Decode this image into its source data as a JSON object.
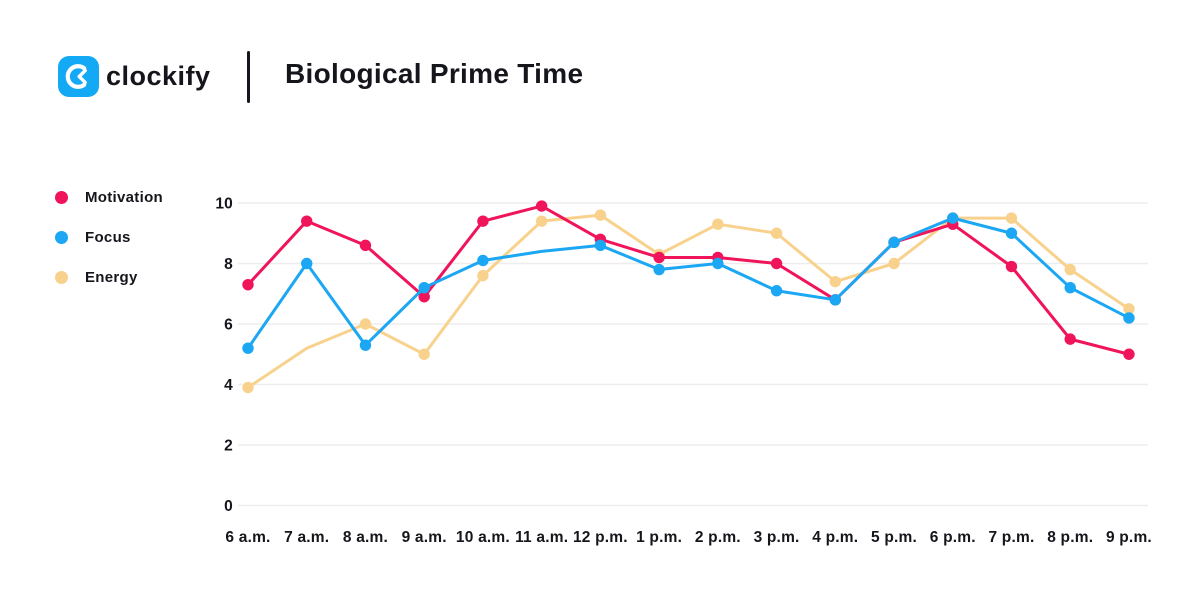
{
  "header": {
    "brand": "clockify",
    "title": "Biological Prime Time"
  },
  "logo": {
    "icon": "clockify-clock-c-mark",
    "background_color": "#14A9F4",
    "glyph_color": "#ffffff"
  },
  "colors": {
    "text": "#15151c",
    "grid": "#ededed",
    "background": "#ffffff"
  },
  "chart_data": {
    "type": "line",
    "title": "Biological Prime Time",
    "xlabel": "",
    "ylabel": "",
    "ylim": [
      0,
      10
    ],
    "yticks": [
      0,
      2,
      4,
      6,
      8,
      10
    ],
    "grid": true,
    "grid_color": "#ededed",
    "legend_position": "left",
    "categories": [
      "6 a.m.",
      "7 a.m.",
      "8 a.m.",
      "9 a.m.",
      "10 a.m.",
      "11 a.m.",
      "12 p.m.",
      "1 p.m.",
      "2 p.m.",
      "3 p.m.",
      "4 p.m.",
      "5 p.m.",
      "6 p.m.",
      "7 p.m.",
      "8 p.m.",
      "9 p.m."
    ],
    "series": [
      {
        "name": "Energy",
        "color": "#F8D28C",
        "values": [
          3.9,
          5.2,
          6.0,
          5.0,
          7.6,
          9.4,
          9.6,
          8.3,
          9.3,
          9.0,
          7.4,
          8.0,
          9.5,
          9.5,
          7.8,
          6.5
        ],
        "no_marker_indices": [
          1
        ]
      },
      {
        "name": "Motivation",
        "color": "#F0145A",
        "values": [
          7.3,
          9.4,
          8.6,
          6.9,
          9.4,
          9.9,
          8.8,
          8.2,
          8.2,
          8.0,
          6.8,
          8.7,
          9.3,
          7.9,
          5.5,
          5.0
        ],
        "no_marker_indices": []
      },
      {
        "name": "Focus",
        "color": "#1BA7F3",
        "values": [
          5.2,
          8.0,
          5.3,
          7.2,
          8.1,
          8.4,
          8.6,
          7.8,
          8.0,
          7.1,
          6.8,
          8.7,
          9.5,
          9.0,
          7.2,
          6.2
        ],
        "no_marker_indices": [
          5
        ]
      }
    ],
    "legend_order": [
      "Motivation",
      "Focus",
      "Energy"
    ]
  }
}
